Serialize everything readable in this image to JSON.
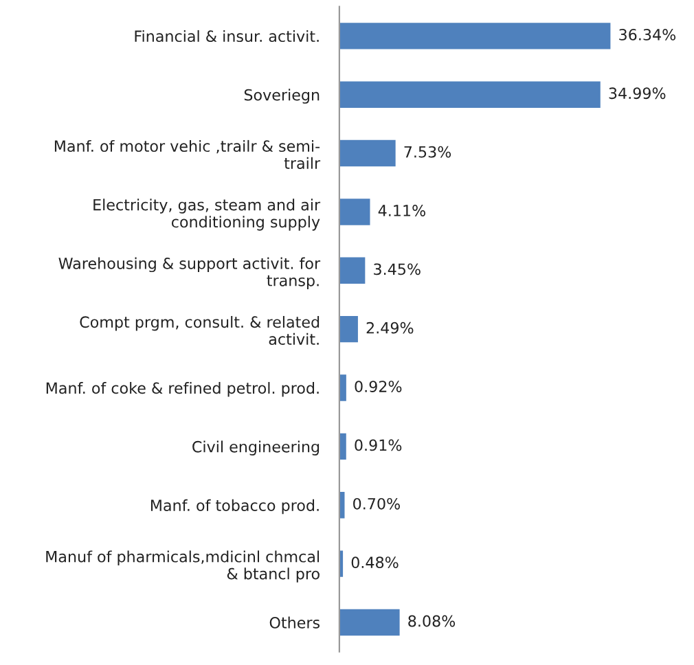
{
  "chart_data": {
    "type": "bar",
    "orientation": "horizontal",
    "categories": [
      "Financial & insur. activit.",
      "Soveriegn",
      "Manf. of motor vehic ,trailr & semi-\ntrailr",
      "Electricity, gas, steam and air\nconditioning supply",
      "Warehousing & support activit. for\ntransp.",
      "Compt prgm, consult. & related\nactivit.",
      "Manf. of coke & refined petrol. prod.",
      "Civil engineering",
      "Manf. of tobacco prod.",
      "Manuf of pharmicals,mdicinl chmcal\n& btancl pro",
      "Others"
    ],
    "values": [
      36.34,
      34.99,
      7.53,
      4.11,
      3.45,
      2.49,
      0.92,
      0.91,
      0.7,
      0.48,
      8.08
    ],
    "value_labels": [
      "36.34%",
      "34.99%",
      "7.53%",
      "4.11%",
      "3.45%",
      "2.49%",
      "0.92%",
      "0.91%",
      "0.70%",
      "0.48%",
      "8.08%"
    ],
    "color": "#4f81bd",
    "grid": false,
    "legend": false
  }
}
